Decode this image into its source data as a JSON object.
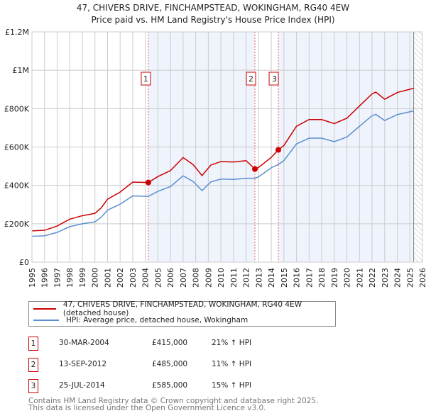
{
  "title": "47, CHIVERS DRIVE, FINCHAMPSTEAD, WOKINGHAM, RG40 4EW",
  "subtitle": "Price paid vs. HM Land Registry's House Price Index (HPI)",
  "chart_data": {
    "type": "line",
    "xlim": [
      1995,
      2026
    ],
    "ylim": [
      0,
      1200000
    ],
    "y_ticks": [
      {
        "v": 0,
        "label": "£0"
      },
      {
        "v": 200000,
        "label": "£200K"
      },
      {
        "v": 400000,
        "label": "£400K"
      },
      {
        "v": 600000,
        "label": "£600K"
      },
      {
        "v": 800000,
        "label": "£800K"
      },
      {
        "v": 1000000,
        "label": "£1M"
      },
      {
        "v": 1200000,
        "label": "£1.2M"
      }
    ],
    "x_ticks": [
      "1995",
      "1996",
      "1997",
      "1998",
      "1999",
      "2000",
      "2001",
      "2002",
      "2003",
      "2004",
      "2005",
      "2006",
      "2007",
      "2008",
      "2009",
      "2010",
      "2011",
      "2012",
      "2013",
      "2014",
      "2015",
      "2016",
      "2017",
      "2018",
      "2019",
      "2020",
      "2021",
      "2022",
      "2023",
      "2024",
      "2025",
      "2026"
    ],
    "grid": true,
    "x": [
      1995,
      1996,
      1997,
      1998,
      1999,
      2000,
      2000.5,
      2001,
      2002,
      2003,
      2004.24,
      2005,
      2006,
      2007,
      2007.8,
      2008.5,
      2009.2,
      2010,
      2011,
      2012,
      2012.7,
      2013,
      2014,
      2014.56,
      2015,
      2016,
      2017,
      2018,
      2019,
      2020,
      2021,
      2022,
      2022.3,
      2023,
      2024,
      2025.3
    ],
    "series": [
      {
        "name": "47, CHIVERS DRIVE, FINCHAMPSTEAD, WOKINGHAM, RG40 4EW (detached house)",
        "color": "#cc0000",
        "values": [
          163000,
          166000,
          188000,
          224000,
          242000,
          254000,
          283000,
          328000,
          365000,
          417000,
          415000,
          446000,
          477000,
          545000,
          508000,
          451000,
          506000,
          524000,
          522000,
          529000,
          485000,
          494000,
          546000,
          585000,
          608000,
          708000,
          743000,
          743000,
          722000,
          750000,
          814000,
          877000,
          886000,
          849000,
          884000,
          906000
        ]
      },
      {
        "name": "HPI: Average price, detached house, Wokingham",
        "color": "#5b8fd0",
        "values": [
          135000,
          137000,
          155000,
          185000,
          200000,
          210000,
          234000,
          271000,
          302000,
          345000,
          343000,
          369000,
          394000,
          450000,
          420000,
          373000,
          418000,
          433000,
          431000,
          437000,
          437000,
          445000,
          492000,
          509000,
          529000,
          616000,
          646000,
          646000,
          628000,
          652000,
          708000,
          763000,
          770000,
          738000,
          769000,
          788000
        ]
      }
    ],
    "sales": [
      {
        "n": "1",
        "x": 2004.24,
        "date": "30-MAR-2004",
        "price": "£415,000",
        "value": 415000,
        "hpi": "21% ↑ HPI"
      },
      {
        "n": "2",
        "x": 2012.7,
        "date": "13-SEP-2012",
        "price": "£485,000",
        "value": 485000,
        "hpi": "11% ↑ HPI"
      },
      {
        "n": "3",
        "x": 2014.56,
        "date": "25-JUL-2014",
        "price": "£585,000",
        "value": 585000,
        "hpi": "15% ↑ HPI"
      }
    ],
    "data_end": 2025.3,
    "legend_placement": "below"
  },
  "footer": [
    "Contains HM Land Registry data © Crown copyright and database right 2025.",
    "This data is licensed under the Open Government Licence v3.0."
  ]
}
